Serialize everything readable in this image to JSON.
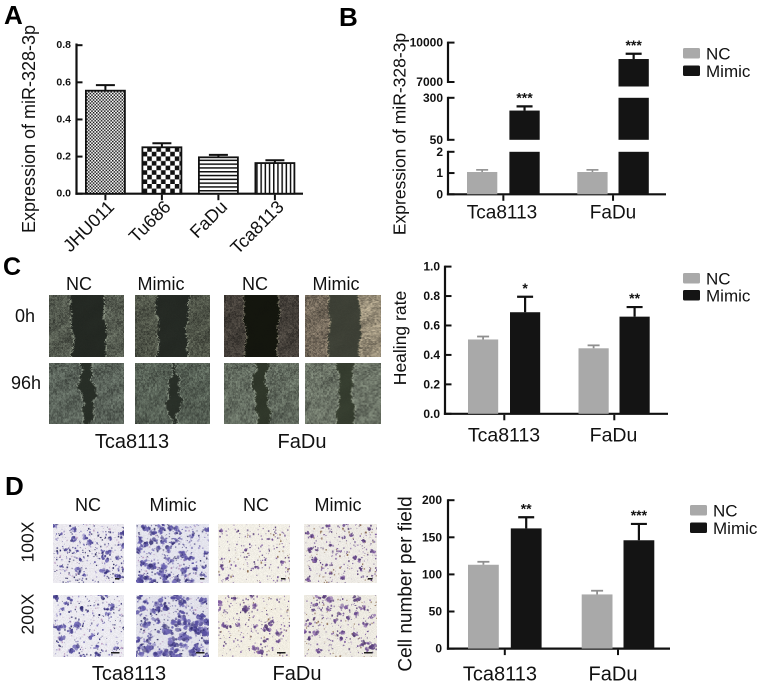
{
  "panels": {
    "a": "A",
    "b": "B",
    "c": "C",
    "d": "D"
  },
  "colors": {
    "nc": "#a9a9a9",
    "mimic": "#141414",
    "axis": "#111111"
  },
  "panelC": {
    "col_headers": [
      "NC",
      "Mimic",
      "NC",
      "Mimic"
    ],
    "row_labels": [
      "0h",
      "96h"
    ],
    "group_labels": [
      "Tca8113",
      "FaDu"
    ],
    "image_type": "wound-healing-microscopy"
  },
  "panelD": {
    "col_headers": [
      "NC",
      "Mimic",
      "NC",
      "Mimic"
    ],
    "row_labels": [
      "100X",
      "200X"
    ],
    "group_labels": [
      "Tca8113",
      "FaDu"
    ],
    "image_type": "transwell-migration-microscopy"
  },
  "chart_data": [
    {
      "id": "A",
      "type": "bar",
      "ylabel": "Expression of miR-328-3p",
      "categories": [
        "JHU011",
        "Tu686",
        "FaDu",
        "Tca8113"
      ],
      "values": [
        0.555,
        0.25,
        0.196,
        0.165
      ],
      "errors": [
        0.03,
        0.022,
        0.013,
        0.015
      ],
      "ylim": [
        0,
        0.8
      ],
      "yticks": [
        "0.0",
        "0.2",
        "0.4",
        "0.6",
        "0.8"
      ],
      "patterns": [
        "dots",
        "checker",
        "hlines",
        "vlines"
      ]
    },
    {
      "id": "B",
      "type": "bar",
      "axis_style": "segmented",
      "ylabel": "Expression of miR-328-3p",
      "categories": [
        "Tca8113",
        "FaDu"
      ],
      "series": [
        {
          "name": "NC",
          "color": "#a9a9a9",
          "values": [
            1.05,
            1.05
          ],
          "errors": [
            0.1,
            0.1
          ]
        },
        {
          "name": "Mimic",
          "color": "#141414",
          "values": [
            224,
            8750
          ],
          "errors": [
            25,
            400
          ]
        }
      ],
      "yticks": [
        0,
        1,
        2,
        50,
        300,
        7000,
        10000
      ],
      "axis_segments": [
        [
          0,
          2
        ],
        [
          50,
          300
        ],
        [
          7000,
          10000
        ]
      ],
      "significance": [
        "***",
        "***"
      ],
      "legend": [
        "NC",
        "Mimic"
      ],
      "legend_position": "right"
    },
    {
      "id": "C",
      "type": "bar",
      "ylabel": "Healing rate",
      "categories": [
        "Tca8113",
        "FaDu"
      ],
      "series": [
        {
          "name": "NC",
          "color": "#a9a9a9",
          "values": [
            0.505,
            0.445
          ],
          "errors": [
            0.02,
            0.02
          ]
        },
        {
          "name": "Mimic",
          "color": "#141414",
          "values": [
            0.69,
            0.66
          ],
          "errors": [
            0.105,
            0.065
          ]
        }
      ],
      "ylim": [
        0,
        1.0
      ],
      "yticks": [
        "0.0",
        "0.2",
        "0.4",
        "0.6",
        "0.8",
        "1.0"
      ],
      "significance": [
        "*",
        "**"
      ],
      "legend": [
        "NC",
        "Mimic"
      ],
      "legend_position": "right"
    },
    {
      "id": "D",
      "type": "bar",
      "ylabel": "Cell number per field",
      "categories": [
        "Tca8113",
        "FaDu"
      ],
      "series": [
        {
          "name": "NC",
          "color": "#a9a9a9",
          "values": [
            113,
            73
          ],
          "errors": [
            4,
            5
          ]
        },
        {
          "name": "Mimic",
          "color": "#141414",
          "values": [
            162,
            146
          ],
          "errors": [
            15,
            22
          ]
        }
      ],
      "ylim": [
        0,
        200
      ],
      "yticks": [
        "0",
        "50",
        "100",
        "150",
        "200"
      ],
      "significance": [
        "**",
        "***"
      ],
      "legend": [
        "NC",
        "Mimic"
      ],
      "legend_position": "right"
    }
  ]
}
